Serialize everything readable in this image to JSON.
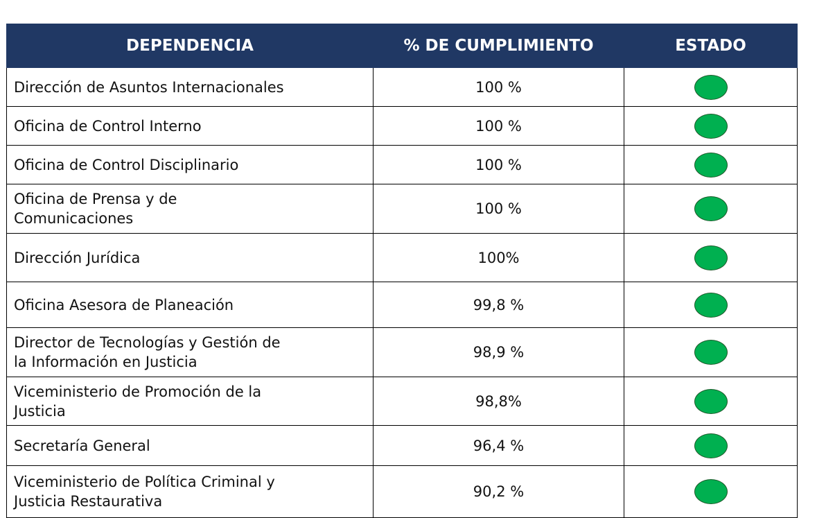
{
  "table": {
    "header": [
      "DEPENDENCIA",
      "% DE CUMPLIMIENTO",
      "ESTADO"
    ],
    "rows": [
      [
        "Dirección de Asuntos Internacionales",
        "100 %"
      ],
      [
        "Oficina de Control Interno",
        "100 %"
      ],
      [
        "Oficina de Control Disciplinario",
        "100 %"
      ],
      [
        "Oficina de Prensa y de\nComunicaciones",
        "100 %"
      ],
      [
        "Dirección Jurídica",
        "100%"
      ],
      [
        "Oficina Asesora de Planeación",
        "99,8 %"
      ],
      [
        "Director de Tecnologías y Gestión de\nla Información en Justicia",
        "98,9 %"
      ],
      [
        "Viceministerio de Promoción de la\nJusticia",
        "98,8%"
      ],
      [
        "Secretaría General",
        "96,4 %"
      ],
      [
        "Viceministerio de Política Criminal y\nJusticia Restaurativa",
        "90,2 %"
      ]
    ]
  }
}
